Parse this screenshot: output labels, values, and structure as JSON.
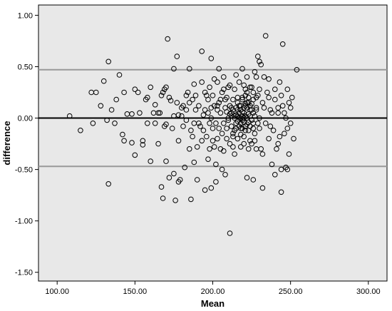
{
  "chart_data": {
    "type": "scatter",
    "title": "",
    "xlabel": "Mean",
    "ylabel": "difference",
    "xlim": [
      100,
      300
    ],
    "ylim": [
      -1.5,
      1.0
    ],
    "xticks": [
      100,
      150,
      200,
      250,
      300
    ],
    "xtick_labels": [
      "100.00",
      "150.00",
      "200.00",
      "250.00",
      "300.00"
    ],
    "yticks": [
      1.0,
      0.5,
      0.0,
      -0.5,
      -1.0,
      -1.5
    ],
    "ytick_labels": [
      "1.00",
      "0.50",
      "0.00",
      "-0.50",
      "-1.00",
      "-1.50"
    ],
    "grid": false,
    "reference_lines": [
      {
        "axis": "y",
        "value": 0.0,
        "color": "#000000",
        "style": "solid"
      },
      {
        "axis": "y",
        "value": 0.47,
        "color": "#999999",
        "style": "solid"
      },
      {
        "axis": "y",
        "value": -0.47,
        "color": "#999999",
        "style": "solid"
      }
    ],
    "colors": {
      "plot_background": "#e8e8e8",
      "marker_stroke": "#000000",
      "limit_line": "#999999"
    },
    "points": [
      [
        108,
        0.02
      ],
      [
        115,
        -0.12
      ],
      [
        122,
        0.25
      ],
      [
        123,
        -0.05
      ],
      [
        125,
        0.25
      ],
      [
        128,
        0.12
      ],
      [
        130,
        0.36
      ],
      [
        132,
        -0.02
      ],
      [
        133,
        0.55
      ],
      [
        133,
        -0.64
      ],
      [
        135,
        0.08
      ],
      [
        137,
        -0.05
      ],
      [
        138,
        0.18
      ],
      [
        140,
        0.42
      ],
      [
        142,
        -0.16
      ],
      [
        143,
        -0.22
      ],
      [
        143,
        0.25
      ],
      [
        145,
        0.04
      ],
      [
        148,
        0.04
      ],
      [
        148,
        -0.24
      ],
      [
        150,
        0.28
      ],
      [
        150,
        -0.36
      ],
      [
        152,
        0.25
      ],
      [
        155,
        -0.22
      ],
      [
        155,
        -0.26
      ],
      [
        158,
        0.2
      ],
      [
        160,
        -0.42
      ],
      [
        160,
        0.3
      ],
      [
        163,
        0.13
      ],
      [
        165,
        0.05
      ],
      [
        165,
        -0.25
      ],
      [
        167,
        -0.67
      ],
      [
        167,
        0.22
      ],
      [
        168,
        -0.78
      ],
      [
        168,
        0.25
      ],
      [
        169,
        -0.08
      ],
      [
        170,
        0.3
      ],
      [
        170,
        -0.42
      ],
      [
        171,
        0.77
      ],
      [
        172,
        -0.58
      ],
      [
        173,
        0.17
      ],
      [
        175,
        0.48
      ],
      [
        175,
        0.02
      ],
      [
        175,
        -0.54
      ],
      [
        176,
        -0.8
      ],
      [
        177,
        0.6
      ],
      [
        178,
        0.03
      ],
      [
        178,
        -0.22
      ],
      [
        179,
        -0.6
      ],
      [
        180,
        0.02
      ],
      [
        181,
        0.12
      ],
      [
        182,
        -0.48
      ],
      [
        183,
        -0.02
      ],
      [
        183,
        0.22
      ],
      [
        185,
        0.48
      ],
      [
        186,
        -0.79
      ],
      [
        187,
        0.18
      ],
      [
        188,
        -0.05
      ],
      [
        188,
        -0.43
      ],
      [
        189,
        0.08
      ],
      [
        190,
        -0.28
      ],
      [
        190,
        -0.6
      ],
      [
        191,
        0.12
      ],
      [
        192,
        -0.08
      ],
      [
        193,
        0.35
      ],
      [
        193,
        0.65
      ],
      [
        194,
        -0.12
      ],
      [
        195,
        -0.7
      ],
      [
        195,
        0.25
      ],
      [
        196,
        -0.18
      ],
      [
        197,
        0.05
      ],
      [
        197,
        -0.4
      ],
      [
        198,
        0.3
      ],
      [
        198,
        -0.3
      ],
      [
        199,
        0.58
      ],
      [
        199,
        -0.68
      ],
      [
        200,
        0.22
      ],
      [
        200,
        -0.1
      ],
      [
        201,
        0.38
      ],
      [
        201,
        0.12
      ],
      [
        202,
        -0.05
      ],
      [
        202,
        -0.45
      ],
      [
        203,
        0.08
      ],
      [
        203,
        -0.2
      ],
      [
        204,
        0.48
      ],
      [
        204,
        0.15
      ],
      [
        205,
        -0.3
      ],
      [
        205,
        0.05
      ],
      [
        206,
        0.25
      ],
      [
        206,
        -0.15
      ],
      [
        207,
        0.4
      ],
      [
        207,
        -0.05
      ],
      [
        208,
        0.1
      ],
      [
        208,
        -0.55
      ],
      [
        209,
        0.2
      ],
      [
        209,
        -0.1
      ],
      [
        210,
        0.0
      ],
      [
        210,
        0.3
      ],
      [
        211,
        0.12
      ],
      [
        211,
        -0.25
      ],
      [
        212,
        0.05
      ],
      [
        212,
        -0.08
      ],
      [
        213,
        0.18
      ],
      [
        213,
        -0.15
      ],
      [
        214,
        0.02
      ],
      [
        214,
        0.28
      ],
      [
        215,
        -0.05
      ],
      [
        215,
        0.1
      ],
      [
        216,
        -0.2
      ],
      [
        216,
        0.15
      ],
      [
        217,
        0.0
      ],
      [
        217,
        0.35
      ],
      [
        218,
        -0.1
      ],
      [
        218,
        0.08
      ],
      [
        219,
        0.2
      ],
      [
        219,
        -0.02
      ],
      [
        220,
        0.05
      ],
      [
        220,
        -0.18
      ],
      [
        221,
        0.12
      ],
      [
        221,
        -0.08
      ],
      [
        222,
        0.25
      ],
      [
        222,
        0.0
      ],
      [
        223,
        -0.12
      ],
      [
        223,
        0.15
      ],
      [
        224,
        0.02
      ],
      [
        224,
        -0.22
      ],
      [
        225,
        0.3
      ],
      [
        225,
        0.08
      ],
      [
        226,
        -0.05
      ],
      [
        226,
        0.18
      ],
      [
        227,
        0.45
      ],
      [
        227,
        -0.15
      ],
      [
        228,
        0.1
      ],
      [
        228,
        -0.3
      ],
      [
        229,
        0.22
      ],
      [
        230,
        0.0
      ],
      [
        230,
        -0.1
      ],
      [
        232,
        0.15
      ],
      [
        233,
        0.4
      ],
      [
        234,
        -0.05
      ],
      [
        235,
        0.25
      ],
      [
        236,
        -0.2
      ],
      [
        237,
        0.08
      ],
      [
        238,
        -0.45
      ],
      [
        240,
        0.18
      ],
      [
        241,
        -0.3
      ],
      [
        242,
        0.05
      ],
      [
        243,
        0.35
      ],
      [
        244,
        -0.5
      ],
      [
        245,
        0.12
      ],
      [
        246,
        -0.15
      ],
      [
        247,
        0.0
      ],
      [
        248,
        0.28
      ],
      [
        249,
        -0.35
      ],
      [
        250,
        0.1
      ],
      [
        252,
        -0.2
      ],
      [
        254,
        0.47
      ],
      [
        214,
        0.0
      ],
      [
        215,
        0.03
      ],
      [
        216,
        -0.03
      ],
      [
        217,
        0.05
      ],
      [
        218,
        0.0
      ],
      [
        219,
        0.06
      ],
      [
        220,
        -0.04
      ],
      [
        221,
        0.02
      ],
      [
        222,
        -0.06
      ],
      [
        223,
        0.04
      ],
      [
        224,
        0.08
      ],
      [
        219,
        -0.1
      ],
      [
        220,
        0.1
      ],
      [
        221,
        0.14
      ],
      [
        218,
        0.12
      ],
      [
        217,
        -0.08
      ],
      [
        216,
        0.08
      ],
      [
        222,
        0.1
      ],
      [
        223,
        -0.04
      ],
      [
        215,
        -0.1
      ],
      [
        225,
        -0.02
      ],
      [
        226,
        0.05
      ],
      [
        213,
        0.08
      ],
      [
        212,
        0.02
      ],
      [
        211,
        0.04
      ],
      [
        220,
        0.0
      ],
      [
        219,
        0.02
      ],
      [
        218,
        -0.05
      ],
      [
        221,
        -0.12
      ],
      [
        222,
        0.15
      ],
      [
        224,
        -0.08
      ],
      [
        216,
        0.2
      ],
      [
        217,
        0.12
      ],
      [
        210,
        -0.02
      ],
      [
        209,
        0.06
      ],
      [
        227,
        0.02
      ],
      [
        228,
        0.08
      ],
      [
        229,
        -0.05
      ],
      [
        214,
        -0.12
      ],
      [
        213,
        -0.18
      ],
      [
        223,
        0.2
      ],
      [
        224,
        0.12
      ],
      [
        219,
        0.18
      ],
      [
        220,
        -0.25
      ],
      [
        221,
        0.22
      ],
      [
        218,
        -0.16
      ],
      [
        216,
        0.02
      ],
      [
        225,
        0.14
      ],
      [
        226,
        -0.1
      ],
      [
        212,
        0.1
      ],
      [
        170,
        -0.06
      ],
      [
        180,
        0.1
      ],
      [
        185,
        0.15
      ],
      [
        194,
        0.03
      ],
      [
        196,
        0.22
      ],
      [
        198,
        -0.05
      ],
      [
        199,
        0.1
      ],
      [
        203,
        0.35
      ],
      [
        205,
        0.18
      ],
      [
        207,
        -0.32
      ],
      [
        209,
        -0.2
      ],
      [
        211,
        0.32
      ],
      [
        213,
        -0.28
      ],
      [
        215,
        0.42
      ],
      [
        228,
        0.4
      ],
      [
        229,
        0.6
      ],
      [
        231,
        0.52
      ],
      [
        232,
        -0.35
      ],
      [
        234,
        0.8
      ],
      [
        236,
        0.2
      ],
      [
        238,
        0.05
      ],
      [
        239,
        -0.12
      ],
      [
        240,
        0.28
      ],
      [
        242,
        -0.25
      ],
      [
        244,
        0.22
      ],
      [
        245,
        0.72
      ],
      [
        246,
        0.05
      ],
      [
        247,
        -0.48
      ],
      [
        248,
        -0.1
      ],
      [
        249,
        0.15
      ],
      [
        250,
        -0.05
      ],
      [
        251,
        0.2
      ],
      [
        232,
        -0.68
      ],
      [
        240,
        -0.55
      ],
      [
        244,
        -0.72
      ],
      [
        248,
        -0.5
      ],
      [
        226,
        -0.6
      ],
      [
        222,
        -0.58
      ],
      [
        218,
        -0.28
      ],
      [
        214,
        -0.35
      ],
      [
        202,
        -0.62
      ],
      [
        206,
        -0.5
      ],
      [
        211,
        -1.12
      ],
      [
        178,
        -0.62
      ],
      [
        166,
        0.05
      ],
      [
        162,
        0.05
      ],
      [
        158,
        -0.05
      ],
      [
        188,
        0.33
      ],
      [
        184,
        0.25
      ],
      [
        186,
        -0.12
      ],
      [
        193,
        -0.22
      ],
      [
        201,
        -0.28
      ],
      [
        230,
        0.28
      ],
      [
        233,
        0.1
      ],
      [
        237,
        -0.08
      ],
      [
        242,
        0.1
      ],
      [
        243,
        -0.18
      ],
      [
        236,
        0.38
      ],
      [
        231,
        -0.3
      ],
      [
        230,
        0.55
      ],
      [
        219,
        0.48
      ],
      [
        220,
        0.32
      ],
      [
        222,
        0.4
      ],
      [
        224,
        0.3
      ],
      [
        226,
        0.25
      ],
      [
        228,
        0.2
      ],
      [
        227,
        -0.22
      ],
      [
        225,
        -0.25
      ],
      [
        223,
        -0.3
      ],
      [
        221,
        0.28
      ],
      [
        207,
        0.28
      ],
      [
        208,
        0.18
      ],
      [
        204,
        -0.1
      ],
      [
        203,
        0.12
      ],
      [
        200,
        -0.22
      ],
      [
        199,
        0.0
      ],
      [
        197,
        0.18
      ],
      [
        195,
        0.08
      ],
      [
        191,
        -0.05
      ],
      [
        189,
        0.22
      ],
      [
        187,
        -0.18
      ],
      [
        185,
        -0.3
      ],
      [
        183,
        0.08
      ],
      [
        181,
        -0.08
      ],
      [
        177,
        0.15
      ],
      [
        174,
        -0.1
      ],
      [
        172,
        0.2
      ],
      [
        169,
        0.28
      ],
      [
        163,
        -0.05
      ],
      [
        157,
        0.18
      ],
      [
        153,
        0.05
      ]
    ]
  }
}
